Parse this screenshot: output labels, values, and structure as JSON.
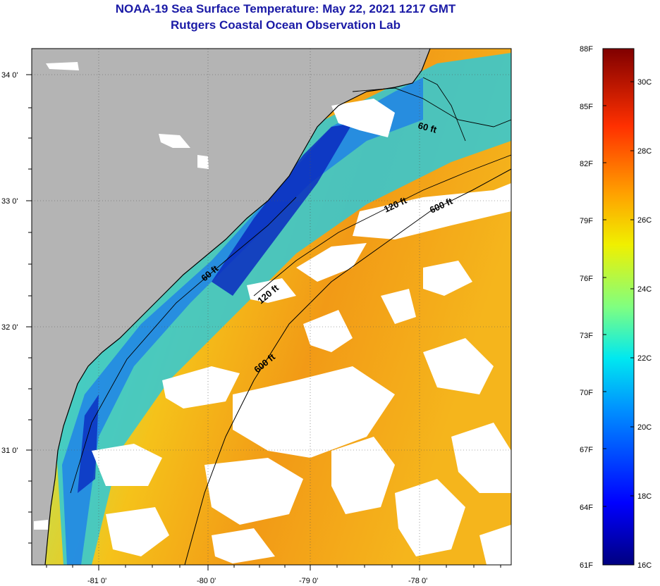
{
  "header": {
    "title": "NOAA-19 Sea Surface Temperature:  May 22, 2021 1217 GMT",
    "subtitle": "Rutgers Coastal Ocean Observation Lab"
  },
  "map": {
    "lat_labels": [
      "34 0'",
      "33 0'",
      "32 0'",
      "31 0'"
    ],
    "lon_labels": [
      "-81 0'",
      "-80 0'",
      "-79 0'",
      "-78 0'"
    ],
    "isobaths": [
      {
        "label": "60 ft"
      },
      {
        "label": "60 ft"
      },
      {
        "label": "120 ft"
      },
      {
        "label": "120 ft"
      },
      {
        "label": "600 ft"
      },
      {
        "label": "600 ft"
      }
    ],
    "colors": {
      "land": "#b4b4b4",
      "cloud": "#ffffff",
      "coast": "#000000"
    }
  },
  "colorbar": {
    "fahrenheit_labels": [
      "88F",
      "85F",
      "82F",
      "79F",
      "76F",
      "73F",
      "70F",
      "67F",
      "64F",
      "61F"
    ],
    "celsius_labels": [
      "30C",
      "28C",
      "26C",
      "24C",
      "22C",
      "20C",
      "18C",
      "16C"
    ],
    "range_f": [
      61,
      88
    ],
    "range_c": [
      16,
      31.1
    ]
  }
}
